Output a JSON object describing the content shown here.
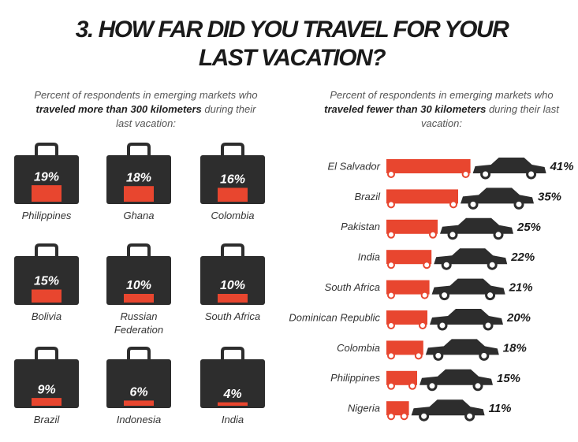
{
  "title": "3. HOW FAR DID YOU TRAVEL FOR YOUR LAST VACATION?",
  "chart_data": [
    {
      "type": "pictogram",
      "subtitle": [
        "Percent of respondents in emerging markets who ",
        "traveled more than 300 kilometers",
        " during their last vacation:"
      ],
      "categories": [
        "Philippines",
        "Ghana",
        "Colombia",
        "Bolivia",
        "Russian Federation",
        "South Africa",
        "Brazil",
        "Indonesia",
        "India"
      ],
      "values": [
        19,
        18,
        16,
        15,
        10,
        10,
        9,
        6,
        4
      ],
      "value_labels": [
        "19%",
        "18%",
        "16%",
        "15%",
        "10%",
        "10%",
        "9%",
        "6%",
        "4%"
      ],
      "color": "#e8462f"
    },
    {
      "type": "bar",
      "subtitle": [
        "Percent of respondents in emerging markets who ",
        "traveled fewer than 30 kilometers",
        " during their last vacation:"
      ],
      "categories": [
        "El Salvador",
        "Brazil",
        "Pakistan",
        "India",
        "South Africa",
        "Dominican Republic",
        "Colombia",
        "Philippines",
        "Nigeria"
      ],
      "values": [
        41,
        35,
        25,
        22,
        21,
        20,
        18,
        15,
        11
      ],
      "value_labels": [
        "41%",
        "35%",
        "25%",
        "22%",
        "21%",
        "20%",
        "18%",
        "15%",
        "11%"
      ],
      "color": "#e8462f"
    }
  ]
}
